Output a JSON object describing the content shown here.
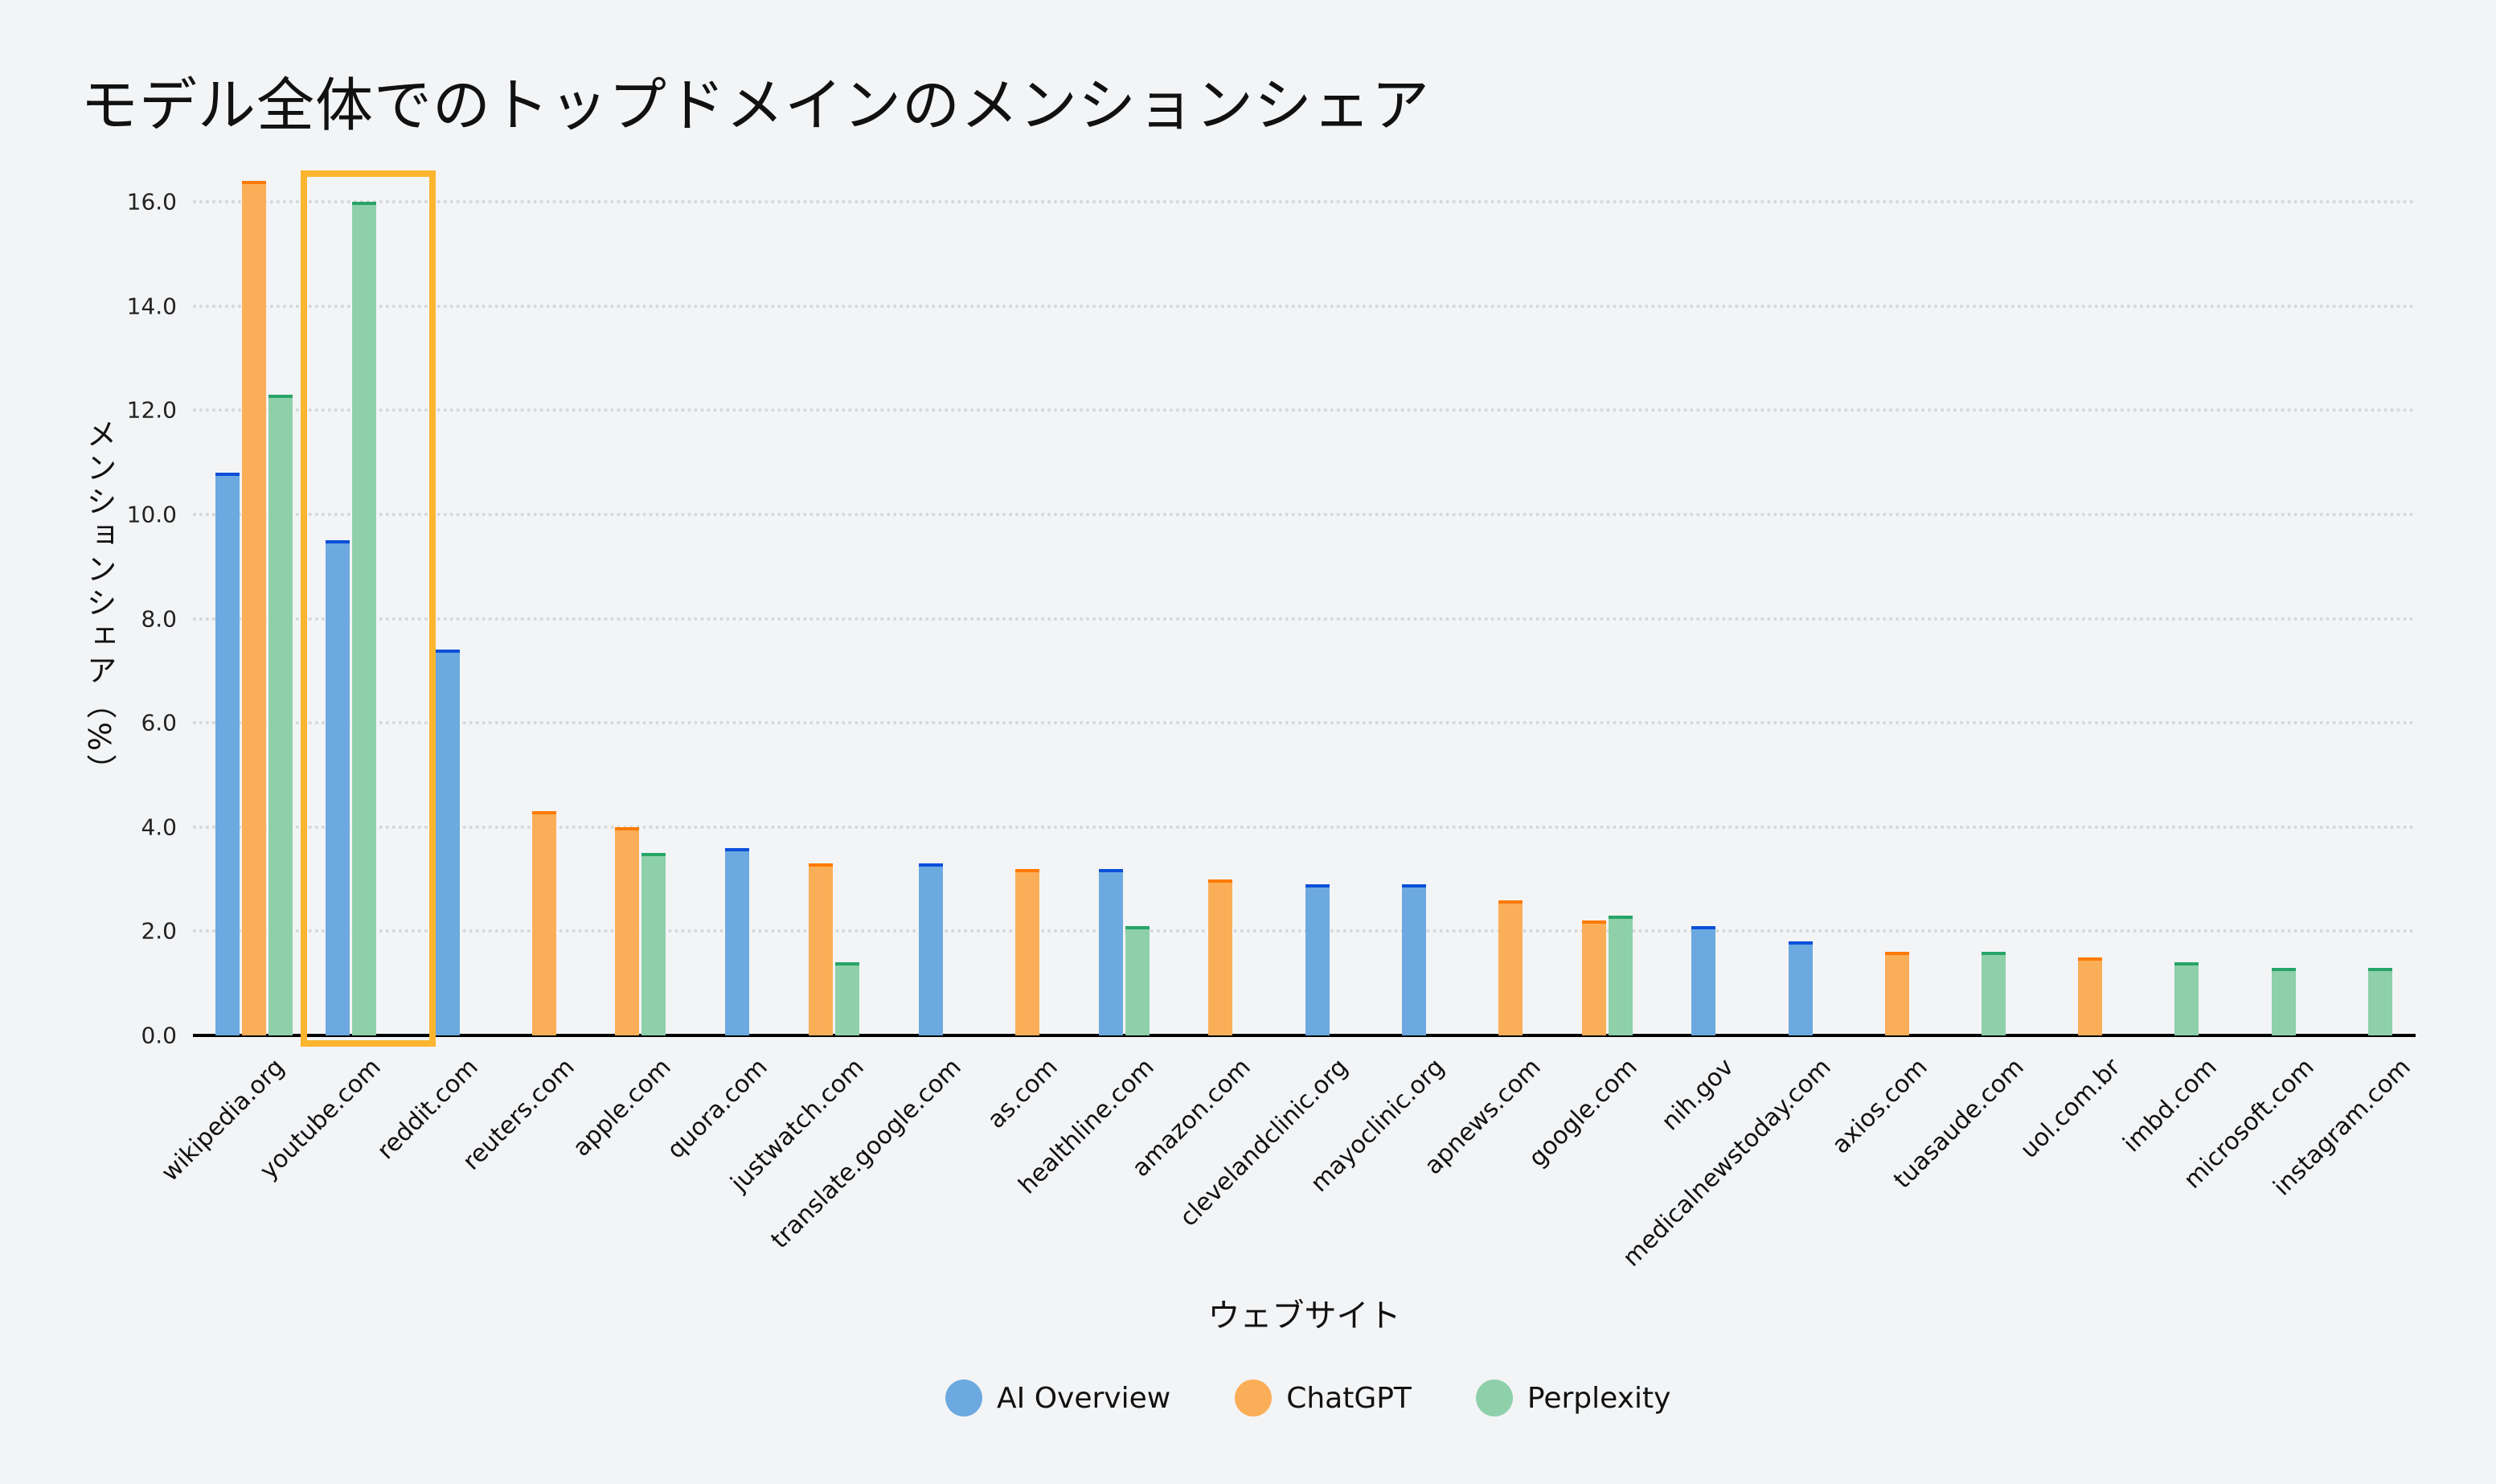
{
  "title": "モデル全体でのトップドメインのメンションシェア",
  "chart_data": {
    "type": "bar",
    "title": "モデル全体でのトップドメインのメンションシェア",
    "xlabel": "ウェブサイト",
    "ylabel": "メンションシェア（%）",
    "ylim": [
      0,
      16.5
    ],
    "yticks": [
      "0.0",
      "2.0",
      "4.0",
      "6.0",
      "8.0",
      "10.0",
      "12.0",
      "14.0",
      "16.0"
    ],
    "grid": "horizontal dotted",
    "legend_position": "bottom center",
    "categories": [
      "wikipedia.org",
      "youtube.com",
      "reddit.com",
      "reuters.com",
      "apple.com",
      "quora.com",
      "justwatch.com",
      "translate.google.com",
      "as.com",
      "healthline.com",
      "amazon.com",
      "clevelandclinic.org",
      "mayoclinic.org",
      "apnews.com",
      "google.com",
      "nih.gov",
      "medicalnewstoday.com",
      "axios.com",
      "tuasaude.com",
      "uol.com.br",
      "imbd.com",
      "microsoft.com",
      "instagram.com"
    ],
    "series": [
      {
        "name": "AI Overview",
        "color": "#6ca9e0",
        "cap_color": "#0b4fd9",
        "values": [
          10.8,
          9.5,
          7.4,
          null,
          null,
          3.6,
          null,
          3.3,
          null,
          3.2,
          null,
          2.9,
          2.9,
          null,
          null,
          2.1,
          1.8,
          null,
          null,
          null,
          null,
          null,
          null
        ]
      },
      {
        "name": "ChatGPT",
        "color": "#fbae58",
        "cap_color": "#ff7a00",
        "values": [
          16.4,
          null,
          null,
          4.3,
          4.0,
          null,
          3.3,
          null,
          3.2,
          null,
          3.0,
          null,
          null,
          2.6,
          2.2,
          null,
          null,
          1.6,
          null,
          1.5,
          null,
          null,
          null
        ]
      },
      {
        "name": "Perplexity",
        "color": "#8dd0aa",
        "cap_color": "#27a567",
        "values": [
          12.3,
          16.0,
          null,
          null,
          3.5,
          null,
          1.4,
          null,
          null,
          2.1,
          null,
          null,
          null,
          null,
          2.3,
          null,
          null,
          null,
          1.6,
          null,
          1.4,
          1.3,
          1.3
        ]
      }
    ],
    "annotations": [
      {
        "type": "highlight-box",
        "color": "#fbb52f",
        "covers": [
          "youtube.com",
          "reddit.com"
        ]
      }
    ]
  },
  "legend": [
    {
      "label": "AI Overview",
      "color": "#6ca9e0"
    },
    {
      "label": "ChatGPT",
      "color": "#fbae58"
    },
    {
      "label": "Perplexity",
      "color": "#8dd0aa"
    }
  ]
}
